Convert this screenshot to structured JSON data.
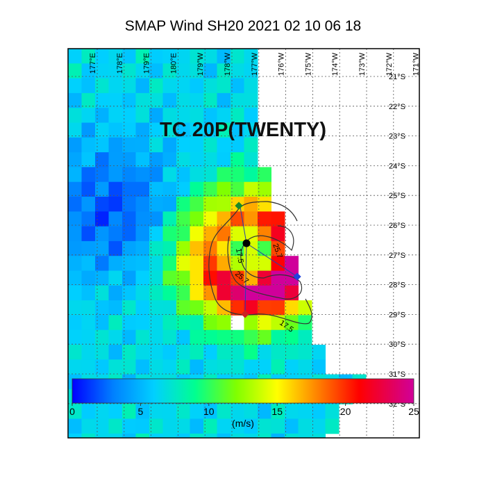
{
  "title": "SMAP Wind  SH20  2021 02 10 06 18",
  "storm_label": "TC 20P(TWENTY)",
  "lon_labels": [
    "177°E",
    "178°E",
    "179°E",
    "180°E",
    "179°W",
    "178°W",
    "177°W",
    "176°W",
    "175°W",
    "174°W",
    "173°W",
    "172°W",
    "171°W"
  ],
  "lat_labels": [
    "21°S",
    "22°S",
    "23°S",
    "24°S",
    "25°S",
    "26°S",
    "27°S",
    "28°S",
    "29°S",
    "30°S",
    "31°S",
    "32°S"
  ],
  "contour_labels": [
    "17.5",
    "25.7",
    "25.7",
    "17.5"
  ],
  "colorbar": {
    "lim": [
      0,
      25
    ],
    "ticks": [
      0,
      5,
      10,
      15,
      20,
      25
    ],
    "unit": "(m/s)"
  }
}
